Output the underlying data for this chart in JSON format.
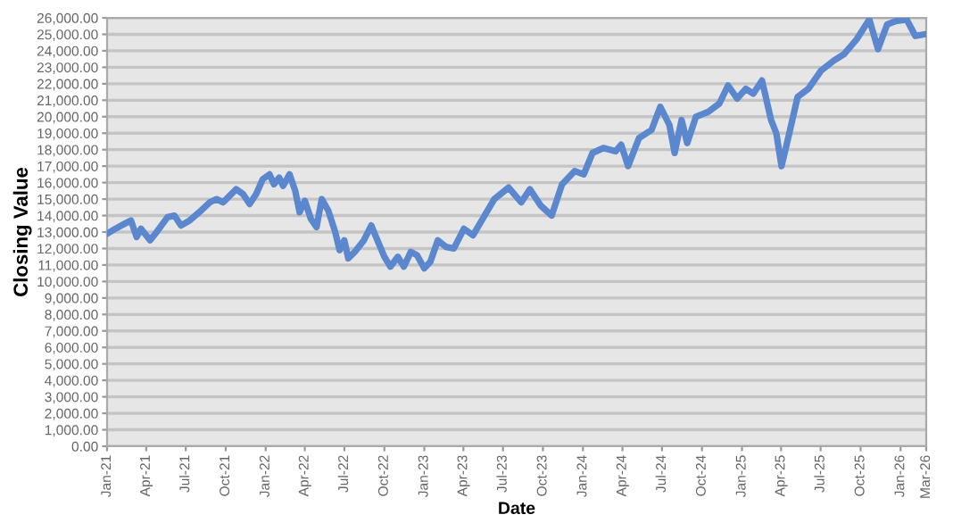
{
  "chart_data": {
    "type": "line",
    "xlabel": "Date",
    "ylabel": "Closing Value",
    "x": [
      "2021-01-01",
      "2021-01-20",
      "2021-02-10",
      "2021-02-25",
      "2021-03-10",
      "2021-03-20",
      "2021-04-10",
      "2021-04-25",
      "2021-05-20",
      "2021-06-05",
      "2021-06-20",
      "2021-07-10",
      "2021-08-01",
      "2021-08-25",
      "2021-09-10",
      "2021-09-25",
      "2021-10-10",
      "2021-10-25",
      "2021-11-10",
      "2021-11-25",
      "2021-12-10",
      "2021-12-25",
      "2022-01-10",
      "2022-01-20",
      "2022-02-01",
      "2022-02-10",
      "2022-02-25",
      "2022-03-10",
      "2022-03-20",
      "2022-04-01",
      "2022-04-15",
      "2022-04-28",
      "2022-05-10",
      "2022-05-25",
      "2022-06-10",
      "2022-06-20",
      "2022-07-01",
      "2022-07-10",
      "2022-07-25",
      "2022-08-15",
      "2022-09-01",
      "2022-09-15",
      "2022-10-01",
      "2022-10-15",
      "2022-11-01",
      "2022-11-15",
      "2022-12-01",
      "2022-12-15",
      "2023-01-01",
      "2023-01-15",
      "2023-02-01",
      "2023-02-20",
      "2023-03-10",
      "2023-04-02",
      "2023-04-23",
      "2023-06-11",
      "2023-07-14",
      "2023-08-12",
      "2023-09-01",
      "2023-09-26",
      "2023-10-21",
      "2023-11-14",
      "2023-12-13",
      "2024-01-03",
      "2024-01-23",
      "2024-02-17",
      "2024-03-16",
      "2024-03-29",
      "2024-04-14",
      "2024-05-09",
      "2024-06-07",
      "2024-06-27",
      "2024-07-18",
      "2024-07-30",
      "2024-08-15",
      "2024-08-28",
      "2024-09-17",
      "2024-10-16",
      "2024-11-10",
      "2024-11-30",
      "2024-12-21",
      "2025-01-10",
      "2025-01-27",
      "2025-02-16",
      "2025-03-09",
      "2025-03-21",
      "2025-04-02",
      "2025-04-19",
      "2025-05-09",
      "2025-06-03",
      "2025-07-02",
      "2025-07-31",
      "2025-08-24",
      "2025-09-22",
      "2025-10-21",
      "2025-11-10",
      "2025-12-01",
      "2025-12-21",
      "2026-01-15",
      "2026-02-04",
      "2026-02-25"
    ],
    "series": [
      {
        "color": "#5b87cf",
        "values": [
          12900,
          13200,
          13500,
          13700,
          12700,
          13200,
          12500,
          13000,
          13900,
          14000,
          13400,
          13700,
          14200,
          14800,
          15000,
          14800,
          15200,
          15600,
          15300,
          14700,
          15300,
          16200,
          16500,
          15900,
          16300,
          15800,
          16500,
          15500,
          14200,
          14900,
          13800,
          13300,
          15000,
          14300,
          13000,
          11900,
          12500,
          11400,
          11800,
          12500,
          13400,
          12500,
          11500,
          10900,
          11500,
          10900,
          11800,
          11600,
          10800,
          11200,
          12500,
          12100,
          12000,
          13200,
          12800,
          15000,
          15700,
          14800,
          15600,
          14600,
          14000,
          15900,
          16700,
          16500,
          17800,
          18100,
          17900,
          18300,
          17000,
          18700,
          19200,
          20600,
          19500,
          17800,
          19800,
          18400,
          20000,
          20300,
          20800,
          21900,
          21100,
          21700,
          21400,
          22200,
          19800,
          19000,
          17000,
          18900,
          21200,
          21700,
          22800,
          23400,
          23800,
          24700,
          25900,
          24100,
          25600,
          25800,
          25900,
          24900,
          25000
        ]
      }
    ],
    "ylim": [
      0,
      26000
    ],
    "yticks": [
      {
        "value": 0,
        "label": "0.00"
      },
      {
        "value": 1000,
        "label": "1,000.00"
      },
      {
        "value": 2000,
        "label": "2,000.00"
      },
      {
        "value": 3000,
        "label": "3,000.00"
      },
      {
        "value": 4000,
        "label": "4,000.00"
      },
      {
        "value": 5000,
        "label": "5,000.00"
      },
      {
        "value": 6000,
        "label": "6,000.00"
      },
      {
        "value": 7000,
        "label": "7,000.00"
      },
      {
        "value": 8000,
        "label": "8,000.00"
      },
      {
        "value": 9000,
        "label": "9,000.00"
      },
      {
        "value": 10000,
        "label": "10,000.00"
      },
      {
        "value": 11000,
        "label": "11,000.00"
      },
      {
        "value": 12000,
        "label": "12,000.00"
      },
      {
        "value": 13000,
        "label": "13,000.00"
      },
      {
        "value": 14000,
        "label": "14,000.00"
      },
      {
        "value": 15000,
        "label": "15,000.00"
      },
      {
        "value": 16000,
        "label": "16,000.00"
      },
      {
        "value": 17000,
        "label": "17,000.00"
      },
      {
        "value": 18000,
        "label": "18,000.00"
      },
      {
        "value": 19000,
        "label": "19,000.00"
      },
      {
        "value": 20000,
        "label": "20,000.00"
      },
      {
        "value": 21000,
        "label": "21,000.00"
      },
      {
        "value": 22000,
        "label": "22,000.00"
      },
      {
        "value": 23000,
        "label": "23,000.00"
      },
      {
        "value": 24000,
        "label": "24,000.00"
      },
      {
        "value": 25000,
        "label": "25,000.00"
      },
      {
        "value": 26000,
        "label": "26,000.00"
      }
    ],
    "xlim": [
      "2021-01-01",
      "2026-03-01"
    ],
    "xticks": [
      {
        "value": "2021-01-01",
        "label": "Jan-21"
      },
      {
        "value": "2021-04-01",
        "label": "Apr-21"
      },
      {
        "value": "2021-07-01",
        "label": "Jul-21"
      },
      {
        "value": "2021-10-01",
        "label": "Oct-21"
      },
      {
        "value": "2022-01-01",
        "label": "Jan-22"
      },
      {
        "value": "2022-04-01",
        "label": "Apr-22"
      },
      {
        "value": "2022-07-01",
        "label": "Jul-22"
      },
      {
        "value": "2022-10-01",
        "label": "Oct-22"
      },
      {
        "value": "2023-01-01",
        "label": "Jan-23"
      },
      {
        "value": "2023-04-01",
        "label": "Apr-23"
      },
      {
        "value": "2023-07-01",
        "label": "Jul-23"
      },
      {
        "value": "2023-10-01",
        "label": "Oct-23"
      },
      {
        "value": "2024-01-01",
        "label": "Jan-24"
      },
      {
        "value": "2024-04-01",
        "label": "Apr-24"
      },
      {
        "value": "2024-07-01",
        "label": "Jul-24"
      },
      {
        "value": "2024-10-01",
        "label": "Oct-24"
      },
      {
        "value": "2025-01-01",
        "label": "Jan-25"
      },
      {
        "value": "2025-04-01",
        "label": "Apr-25"
      },
      {
        "value": "2025-07-01",
        "label": "Jul-25"
      },
      {
        "value": "2025-10-01",
        "label": "Oct-25"
      },
      {
        "value": "2026-01-01",
        "label": "Jan-26"
      },
      {
        "value": "2026-03-01",
        "label": "Mar-26"
      }
    ],
    "grid": "y",
    "legend": false,
    "marker": "none",
    "line_style": "solid"
  }
}
